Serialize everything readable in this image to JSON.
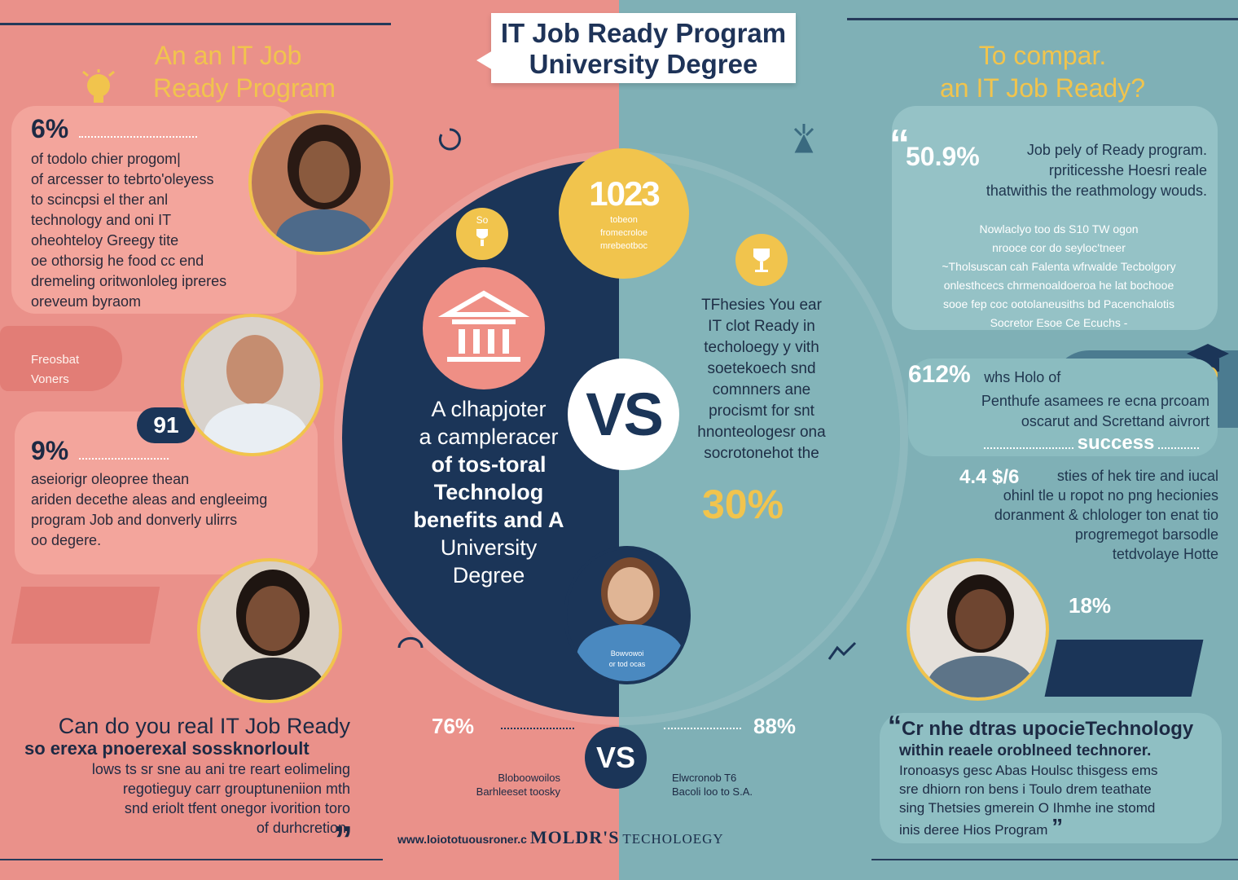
{
  "colors": {
    "left_bg": "#ea918a",
    "right_bg": "#7fb0b6",
    "navy": "#1b3558",
    "gold": "#f1c44d",
    "white": "#ffffff"
  },
  "title": {
    "line1": "IT Job Ready Program",
    "line2": "University Degree"
  },
  "left": {
    "heading_line1": "An an IT Job",
    "heading_line2": "Ready Program",
    "stat1": {
      "value": "6%",
      "lines": [
        "of todolo chier progom|",
        "of arcesser to tebrto'oleyess",
        "to scincpsi el ther anl",
        "technology and oni IT",
        "oheohteloy Greegy tite",
        "oe othorsig he food cc end",
        "dremeling oritwonloleg ipreres",
        "oreveum byraom"
      ]
    },
    "side_label": {
      "line1": "Freosbat",
      "line2": "Voners"
    },
    "stat_badge": "91",
    "stat2": {
      "value": "9%",
      "lines": [
        "aseiorigr oleopree thean",
        "ariden decethe aleas and engleeimg",
        "program Job and donverly  ulirrs",
        "oo degere."
      ]
    },
    "quote": {
      "line1": "Can do you real IT Job Ready",
      "line2": "so erexa pnoerexal sossknorloult",
      "lines": [
        "lows ts sr sne au ani tre reart eolimeling",
        "regotieguy carr grouptuneniion mth",
        "snd eriolt tfent onegor ivorition toro",
        "of durhcretion."
      ],
      "close": "”"
    }
  },
  "right": {
    "heading_line1": "To compar.",
    "heading_line2": "an IT Job Ready?",
    "stat1": {
      "value": "50.9%",
      "lines": [
        "Job pely of Ready  program.",
        "rpriticesshe Hoesri reale",
        "thatwithis the reathmology wouds."
      ]
    },
    "note": {
      "lines": [
        "Nowlaclyo too ds S10 TW ogon",
        "nrooce cor do seyloc'tneer",
        "~Tholsuscan cah Falenta wfrwalde Tecbolgory",
        "onlesthcecs chrmenoaldoeroa he lat bochooe",
        "sooe fep coc ootolaneusiths bd Pacenchalotis",
        "Socretor Esoe Ce Ecuchs -"
      ]
    },
    "stat2": {
      "value": "612%",
      "label": "whs Holo of",
      "lines": [
        "Penthufe asamees re ecna prcoam",
        "oscarut and Screttand aivrort"
      ],
      "success": "success"
    },
    "stat3": {
      "value": "4.4 $/6",
      "lines": [
        "sties of hek tire and iucal",
        "ohinl tle u ropot no png hecionies",
        "doranment & chlologer ton enat tio",
        "progremegot barsodle",
        "tetdvolaye Hotte"
      ]
    },
    "stat4": "18%",
    "quote": {
      "line1": "Cr nhe dtras upocieTechnology",
      "line2": "within reaele oroblneed technorer.",
      "lines": [
        "Ironoasys gesc Abas Houlsc thisgess ems",
        "sre dhiorn ron bens i Toulo drem teathate",
        "sing  Thetsies gmerein O Ihmhe ine stomd",
        "inis deree Hios Program"
      ],
      "open": "“",
      "close": "”"
    }
  },
  "center": {
    "gold_big": {
      "value": "1023",
      "line1": "tobeon",
      "line2": "fromecroloe",
      "line3": "mrebeotboc"
    },
    "gold_small_left": "So",
    "center_text": [
      "A clhapjoter",
      "a campleracer",
      "of tos-toral",
      "Technolog",
      "benefits and A",
      "University",
      "Degree"
    ],
    "vs": "VS",
    "right_text": [
      "TFhesies You ear",
      "IT clot Ready in",
      "techoloegy y vith",
      "soetekoech snd",
      "comnners ane",
      "procismt for snt",
      "hnonteologesr ona",
      "socrotonehot the"
    ],
    "right_pct": "30%",
    "person_caption": {
      "line1": "Bowvowoi",
      "line2": "or tod ocas"
    }
  },
  "bottom": {
    "left_pct": "76%",
    "left_cap1": "Bloboowoilos",
    "left_cap2": "Barhleeset toosky",
    "right_pct": "88%",
    "right_cap1": "Elwcronob T6",
    "right_cap2": "Bacoli loo to S.A.",
    "vs": "VS"
  },
  "footer": {
    "url": "www.loiototuousroner.c",
    "brand": "MOLDR'S",
    "tag": "TECHOLOEGY"
  }
}
